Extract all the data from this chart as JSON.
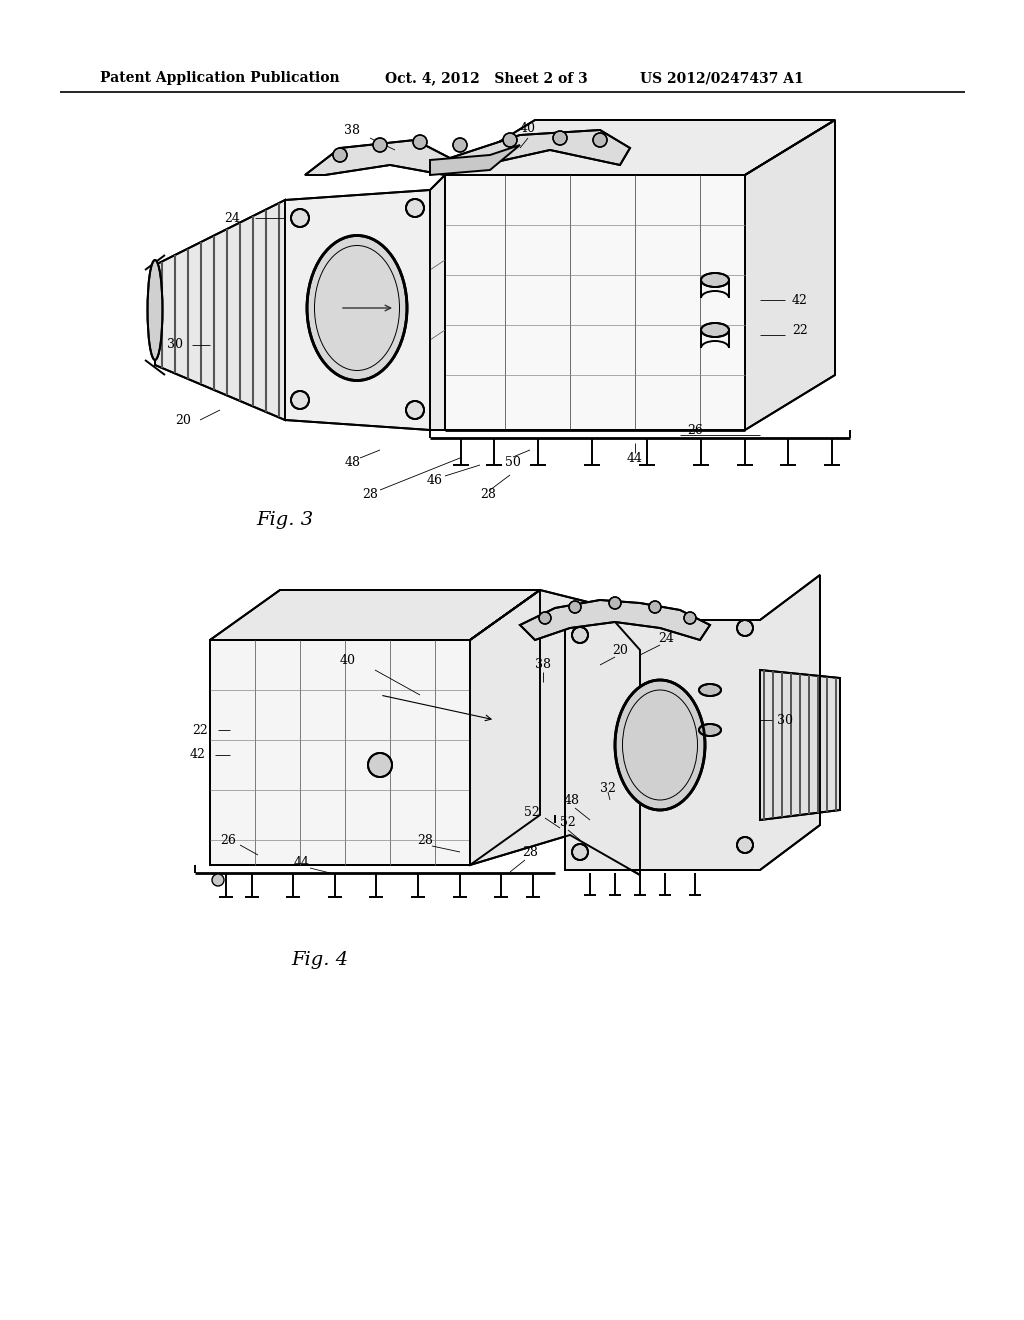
{
  "background_color": "#ffffff",
  "header_left": "Patent Application Publication",
  "header_center": "Oct. 4, 2012   Sheet 2 of 3",
  "header_right": "US 2012/0247437 A1",
  "fig3_label": "Fig. 3",
  "fig4_label": "Fig. 4",
  "line_color": "#000000",
  "text_color": "#000000",
  "lw_heavy": 2.0,
  "lw_medium": 1.4,
  "lw_light": 0.8,
  "fig3_refs": [
    [
      352,
      130,
      "38"
    ],
    [
      528,
      128,
      "40"
    ],
    [
      232,
      218,
      "24"
    ],
    [
      800,
      300,
      "42"
    ],
    [
      800,
      330,
      "22"
    ],
    [
      175,
      345,
      "30"
    ],
    [
      183,
      420,
      "20"
    ],
    [
      695,
      430,
      "26"
    ],
    [
      635,
      458,
      "44"
    ],
    [
      513,
      462,
      "50"
    ],
    [
      353,
      462,
      "48"
    ],
    [
      435,
      480,
      "46"
    ],
    [
      370,
      494,
      "28"
    ],
    [
      488,
      494,
      "28"
    ]
  ],
  "fig4_refs": [
    [
      543,
      665,
      "38"
    ],
    [
      620,
      650,
      "20"
    ],
    [
      666,
      638,
      "24"
    ],
    [
      348,
      660,
      "40"
    ],
    [
      200,
      730,
      "22"
    ],
    [
      198,
      755,
      "42"
    ],
    [
      785,
      720,
      "30"
    ],
    [
      608,
      788,
      "32"
    ],
    [
      572,
      800,
      "48"
    ],
    [
      532,
      812,
      "52"
    ],
    [
      568,
      822,
      "52"
    ],
    [
      228,
      840,
      "26"
    ],
    [
      302,
      862,
      "44"
    ],
    [
      425,
      840,
      "28"
    ],
    [
      530,
      852,
      "28"
    ]
  ]
}
